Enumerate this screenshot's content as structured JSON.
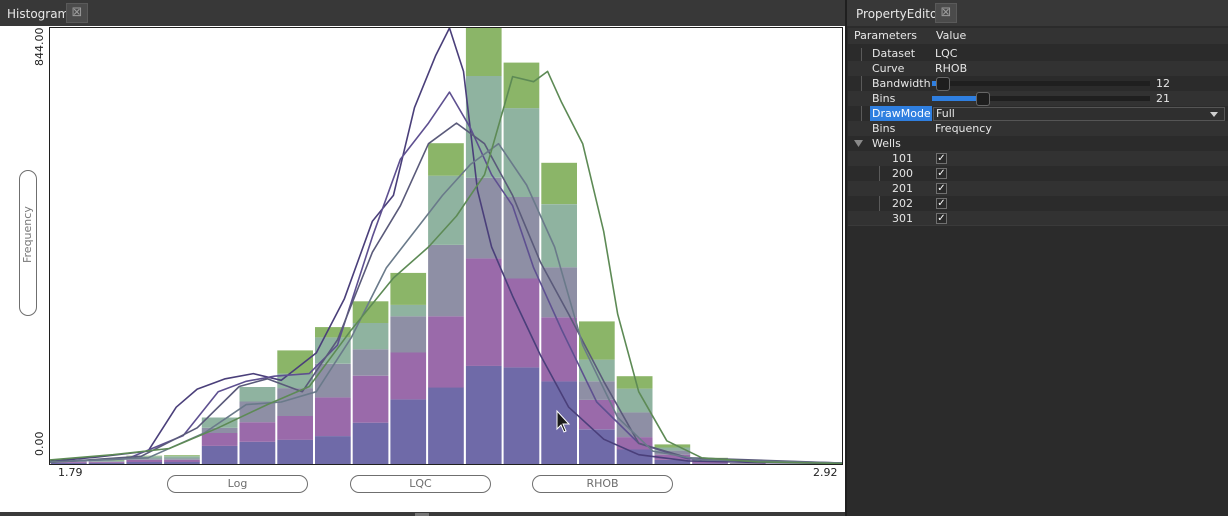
{
  "histogram": {
    "title": "Histogram",
    "y_top_label": "844.00",
    "y_bottom_label": "0.00",
    "x_min_label": "1.79",
    "x_max_label": "2.92",
    "y_axis_pill": "Frequency",
    "bottom_pills": [
      "Log",
      "LQC",
      "RHOB"
    ]
  },
  "property_editor": {
    "title": "PropertyEditor",
    "header": {
      "parameters": "Parameters",
      "value": "Value"
    },
    "rows": {
      "dataset": {
        "label": "Dataset",
        "value": "LQC"
      },
      "curve": {
        "label": "Curve",
        "value": "RHOB"
      },
      "bandwidth": {
        "label": "Bandwidth",
        "value": "12",
        "fraction": 0.02
      },
      "bins": {
        "label": "Bins",
        "value": "21",
        "fraction": 0.2
      },
      "drawmode": {
        "label": "DrawMode",
        "value": "Full"
      },
      "bins_mode": {
        "label": "Bins",
        "value": "Frequency"
      },
      "wells": {
        "label": "Wells"
      }
    },
    "wells": [
      {
        "name": "101",
        "checked": true
      },
      {
        "name": "200",
        "checked": true
      },
      {
        "name": "201",
        "checked": true
      },
      {
        "name": "202",
        "checked": true
      },
      {
        "name": "301",
        "checked": true
      }
    ]
  },
  "chart_data": {
    "type": "bar",
    "title": "",
    "xlabel": "",
    "ylabel": "Frequency",
    "xlim": [
      1.79,
      2.92
    ],
    "ylim": [
      0,
      844
    ],
    "stack_colors": [
      "#6f6aa8",
      "#9a6aaa",
      "#8e8fa5",
      "#8fb3a0",
      "#8bb568"
    ],
    "curve_colors": [
      "#4a3f7a",
      "#5e5090",
      "#5a5a7a",
      "#6a7a8a",
      "#5d8a55"
    ],
    "bins_x": [
      1.79,
      1.8438,
      1.8976,
      1.9514,
      2.0052,
      2.059,
      2.1129,
      2.1667,
      2.2205,
      2.2743,
      2.3281,
      2.3819,
      2.4357,
      2.4895,
      2.5433,
      2.5971,
      2.651,
      2.7048,
      2.7586,
      2.8124,
      2.8662,
      2.92
    ],
    "stacks": [
      [
        2,
        2,
        1,
        2,
        0
      ],
      [
        2,
        2,
        1,
        2,
        1
      ],
      [
        4,
        4,
        3,
        4,
        1
      ],
      [
        4,
        4,
        3,
        4,
        2
      ],
      [
        35,
        25,
        10,
        20,
        0
      ],
      [
        43,
        38,
        40,
        28,
        0
      ],
      [
        47,
        46,
        54,
        28,
        45
      ],
      [
        54,
        75,
        65,
        51,
        20
      ],
      [
        80,
        91,
        51,
        51,
        42
      ],
      [
        125,
        91,
        70,
        22,
        62
      ],
      [
        148,
        138,
        138,
        134,
        63
      ],
      [
        190,
        208,
        156,
        197,
        93
      ],
      [
        187,
        172,
        158,
        172,
        88
      ],
      [
        160,
        124,
        97,
        122,
        80
      ],
      [
        67,
        57,
        36,
        42,
        74
      ],
      [
        28,
        24,
        48,
        46,
        24
      ],
      [
        8,
        10,
        8,
        6,
        6
      ],
      [
        1,
        3,
        2,
        4,
        2
      ],
      [
        0,
        1,
        0,
        1,
        0
      ],
      [
        0,
        0,
        0,
        0,
        0
      ],
      [
        0,
        0,
        0,
        0,
        0
      ]
    ],
    "curves": [
      {
        "x": [
          1.79,
          1.86,
          1.93,
          1.97,
          2.0,
          2.04,
          2.08,
          2.12,
          2.17,
          2.21,
          2.25,
          2.28,
          2.31,
          2.34,
          2.36,
          2.38,
          2.4,
          2.42,
          2.45,
          2.49,
          2.53,
          2.58,
          2.63,
          2.7,
          2.8,
          2.92
        ],
        "y": [
          5,
          14,
          25,
          110,
          145,
          165,
          175,
          162,
          215,
          320,
          470,
          520,
          690,
          790,
          844,
          760,
          530,
          420,
          325,
          210,
          110,
          48,
          18,
          6,
          3,
          1
        ]
      },
      {
        "x": [
          1.79,
          1.9,
          1.98,
          2.03,
          2.07,
          2.11,
          2.16,
          2.2,
          2.25,
          2.29,
          2.33,
          2.36,
          2.39,
          2.42,
          2.45,
          2.48,
          2.52,
          2.57,
          2.63,
          2.7,
          2.92
        ],
        "y": [
          4,
          10,
          55,
          140,
          160,
          170,
          175,
          230,
          440,
          590,
          660,
          720,
          650,
          560,
          500,
          380,
          260,
          120,
          40,
          10,
          2
        ]
      },
      {
        "x": [
          1.79,
          1.92,
          2.0,
          2.06,
          2.1,
          2.15,
          2.2,
          2.25,
          2.29,
          2.33,
          2.37,
          2.41,
          2.45,
          2.49,
          2.53,
          2.58,
          2.63,
          2.7,
          2.92
        ],
        "y": [
          3,
          15,
          70,
          150,
          165,
          140,
          240,
          410,
          500,
          620,
          660,
          620,
          520,
          390,
          290,
          160,
          40,
          12,
          2
        ]
      },
      {
        "x": [
          1.79,
          1.93,
          2.01,
          2.07,
          2.12,
          2.17,
          2.22,
          2.27,
          2.31,
          2.35,
          2.39,
          2.43,
          2.47,
          2.51,
          2.55,
          2.6,
          2.65,
          2.72,
          2.92
        ],
        "y": [
          4,
          12,
          60,
          115,
          120,
          140,
          245,
          380,
          450,
          520,
          580,
          620,
          540,
          420,
          230,
          90,
          25,
          8,
          2
        ]
      },
      {
        "x": [
          1.79,
          1.88,
          1.96,
          2.03,
          2.1,
          2.16,
          2.22,
          2.28,
          2.33,
          2.37,
          2.41,
          2.45,
          2.48,
          2.5,
          2.52,
          2.55,
          2.58,
          2.6,
          2.63,
          2.67,
          2.72,
          2.8,
          2.92
        ],
        "y": [
          8,
          18,
          30,
          70,
          115,
          150,
          260,
          360,
          420,
          480,
          560,
          750,
          740,
          760,
          700,
          620,
          450,
          290,
          140,
          45,
          12,
          4,
          1
        ]
      }
    ]
  }
}
